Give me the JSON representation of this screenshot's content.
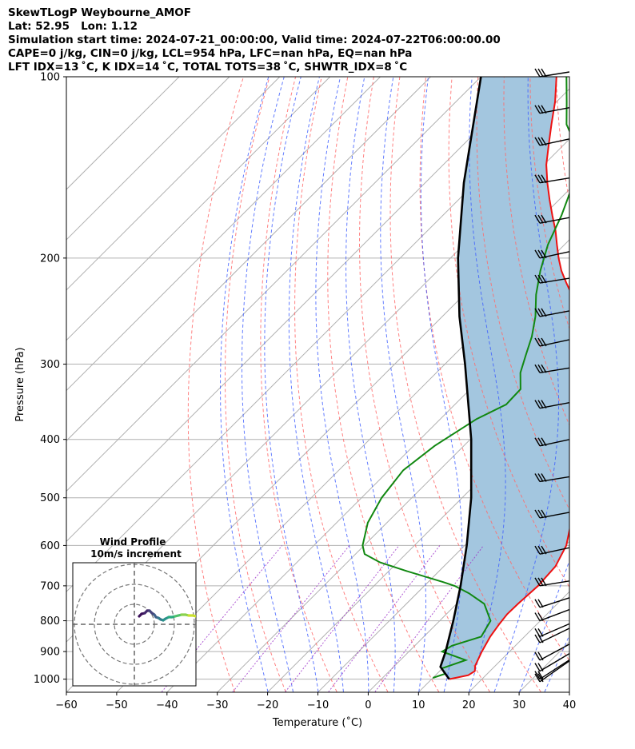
{
  "header": {
    "line1": "SkewTLogP Weybourne_AMOF",
    "line2": "Lat: 52.95   Lon: 1.12",
    "line3": "Simulation start time: 2024-07-21_00:00:00, Valid time: 2024-07-22T06:00:00.00",
    "line4": "CAPE=0 j/kg, CIN=0 j/kg, LCL=954 hPa, LFC=nan hPa, EQ=nan hPa",
    "line5": "LFT IDX=13 ˚C, K IDX=14 ˚C, TOTAL TOTS=38 ˚C, SHWTR_IDX=8 ˚C"
  },
  "chart_data": [
    {
      "type": "line",
      "subtype": "skew-t log-p",
      "xlabel": "Temperature (˚C)",
      "ylabel": "Pressure (hPa)",
      "xlim": [
        -60,
        40
      ],
      "ylim": [
        1050,
        100
      ],
      "yscale": "log",
      "skew_deg": 45,
      "xticks": [
        -60,
        -50,
        -40,
        -30,
        -20,
        -10,
        0,
        10,
        20,
        30,
        40
      ],
      "yticks": [
        100,
        200,
        300,
        400,
        500,
        600,
        700,
        800,
        900,
        1000
      ],
      "grid": true,
      "colors": {
        "temperature": "#ee1111",
        "dewpoint": "#118811",
        "parcel": "#000000",
        "cape_fill": "#a3c6df",
        "dry_adiabat": "#ff6b6b",
        "moist_adiabat": "#3b5bff",
        "mixing_ratio": "#9b30c8",
        "isotherm": "#b0b0b0"
      },
      "series": [
        {
          "key": "temperature",
          "points": [
            [
              1000,
              13.5
            ],
            [
              985,
              16.5
            ],
            [
              970,
              17
            ],
            [
              950,
              16
            ],
            [
              900,
              14.5
            ],
            [
              850,
              13.2
            ],
            [
              810,
              12.5
            ],
            [
              780,
              12.1
            ],
            [
              750,
              12.2
            ],
            [
              700,
              12.6
            ],
            [
              650,
              12.2
            ],
            [
              600,
              10.2
            ],
            [
              550,
              6.6
            ],
            [
              500,
              2.7
            ],
            [
              450,
              -2.2
            ],
            [
              400,
              -7.8
            ],
            [
              350,
              -13.8
            ],
            [
              320,
              -17.4
            ],
            [
              300,
              -20.4
            ],
            [
              280,
              -23.8
            ],
            [
              270,
              -26.2
            ],
            [
              260,
              -28.8
            ],
            [
              250,
              -31.7
            ],
            [
              240,
              -35.0
            ],
            [
              230,
              -38.6
            ],
            [
              220,
              -42.0
            ],
            [
              210,
              -45.4
            ],
            [
              200,
              -48.5
            ],
            [
              190,
              -51.5
            ],
            [
              180,
              -54.6
            ],
            [
              170,
              -58.2
            ],
            [
              160,
              -61.9
            ],
            [
              150,
              -65.7
            ],
            [
              140,
              -69.5
            ],
            [
              130,
              -72.9
            ],
            [
              120,
              -76.5
            ],
            [
              110,
              -80.3
            ],
            [
              100,
              -85.0
            ]
          ]
        },
        {
          "key": "dewpoint",
          "points": [
            [
              995,
              10.0
            ],
            [
              980,
              11.6
            ],
            [
              960,
              9.9
            ],
            [
              930,
              13.0
            ],
            [
              900,
              6.6
            ],
            [
              880,
              7.4
            ],
            [
              850,
              11.4
            ],
            [
              800,
              10.1
            ],
            [
              750,
              5.5
            ],
            [
              720,
              0.3
            ],
            [
              700,
              -4.0
            ],
            [
              690,
              -7.0
            ],
            [
              660,
              -17.0
            ],
            [
              640,
              -23.5
            ],
            [
              620,
              -28.2
            ],
            [
              600,
              -30.3
            ],
            [
              550,
              -33.8
            ],
            [
              500,
              -36.0
            ],
            [
              450,
              -37.2
            ],
            [
              410,
              -35.8
            ],
            [
              370,
              -32.8
            ],
            [
              350,
              -29.8
            ],
            [
              330,
              -30.0
            ],
            [
              310,
              -33.3
            ],
            [
              290,
              -35.7
            ],
            [
              270,
              -38.2
            ],
            [
              250,
              -41.5
            ],
            [
              230,
              -45.7
            ],
            [
              210,
              -49.6
            ],
            [
              190,
              -53.3
            ],
            [
              170,
              -56.4
            ],
            [
              150,
              -60.5
            ],
            [
              140,
              -64.6
            ],
            [
              130,
              -67.5
            ],
            [
              120,
              -73.5
            ],
            [
              110,
              -78.0
            ],
            [
              100,
              -83.0
            ]
          ]
        },
        {
          "key": "parcel",
          "points": [
            [
              1000,
              13.5
            ],
            [
              954,
              9.3
            ],
            [
              900,
              7.3
            ],
            [
              800,
              2.7
            ],
            [
              700,
              -2.8
            ],
            [
              600,
              -9.6
            ],
            [
              500,
              -18.2
            ],
            [
              400,
              -29.8
            ],
            [
              300,
              -46.0
            ],
            [
              250,
              -56.6
            ],
            [
              200,
              -68.5
            ],
            [
              150,
              -82.3
            ],
            [
              100,
              -100.0
            ]
          ]
        }
      ],
      "wind_barbs_pressure_hpa": [
        100,
        115,
        130,
        150,
        175,
        200,
        220,
        250,
        280,
        310,
        355,
        410,
        470,
        540,
        620,
        700,
        760,
        800,
        850,
        870,
        930,
        970,
        1000,
        1010
      ]
    },
    {
      "type": "line",
      "subtype": "hodograph",
      "title": "Wind Profile",
      "subtitle": "10m/s increment",
      "grid": true,
      "rings": 3
    }
  ]
}
